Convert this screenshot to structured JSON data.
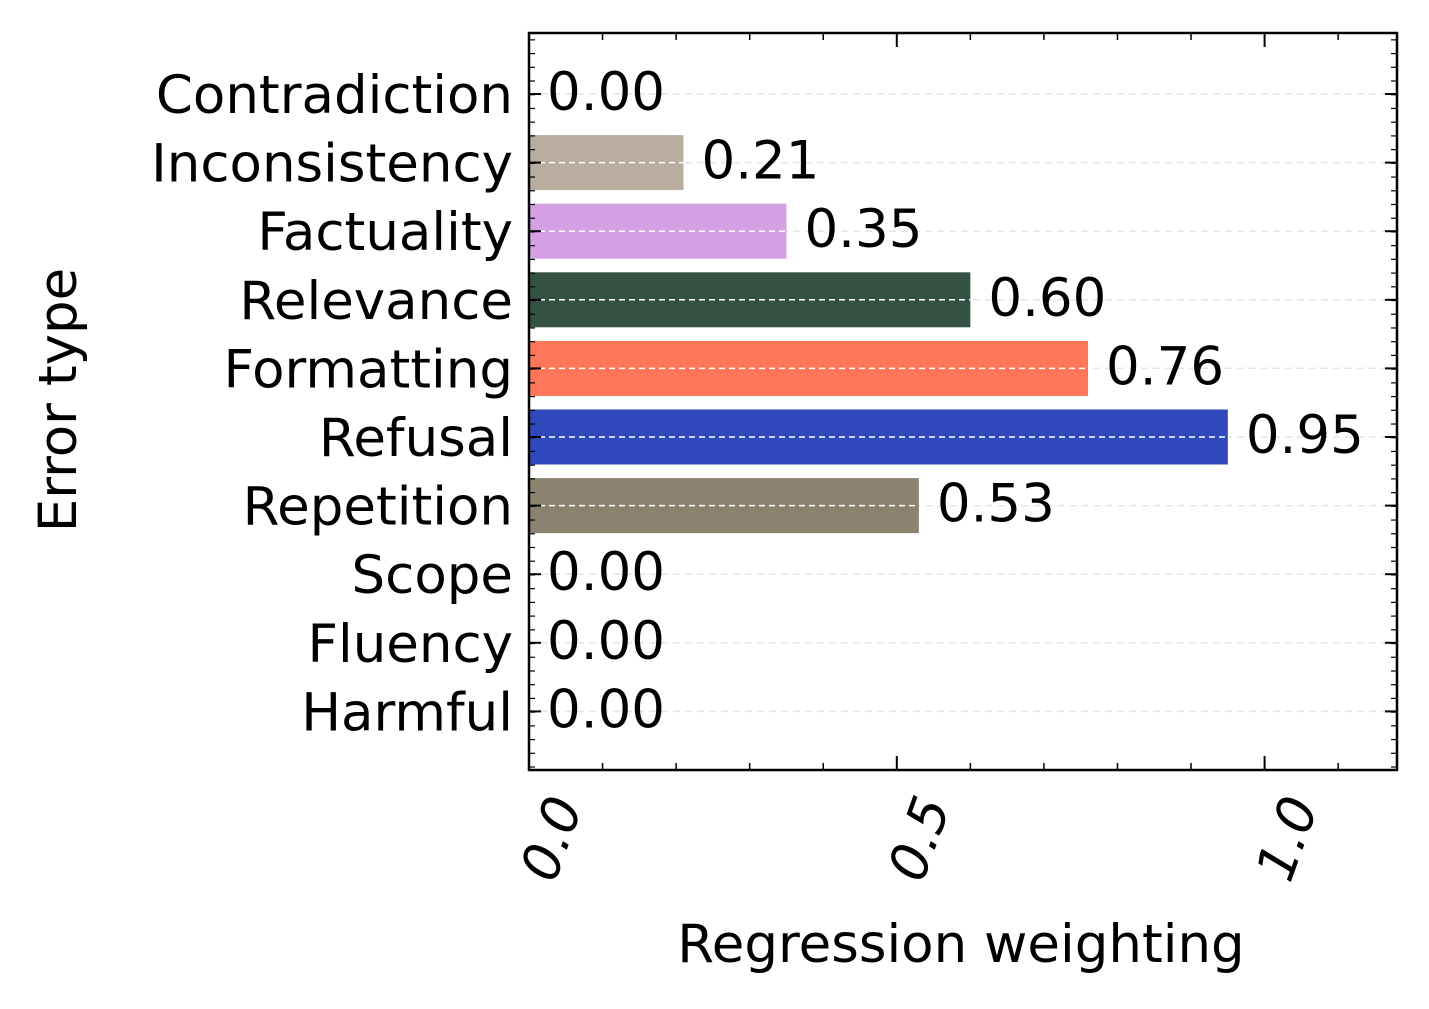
{
  "chart_data": {
    "type": "bar",
    "orientation": "horizontal",
    "xlabel": "Regression weighting",
    "ylabel": "Error type",
    "xlim": [
      0,
      1.18
    ],
    "x_ticks": [
      {
        "value": 0.0,
        "label": "0.0"
      },
      {
        "value": 0.5,
        "label": "0.5"
      },
      {
        "value": 1.0,
        "label": "1.0"
      }
    ],
    "grid": true,
    "categories": [
      "Contradiction",
      "Inconsistency",
      "Factuality",
      "Relevance",
      "Formatting",
      "Refusal",
      "Repetition",
      "Scope",
      "Fluency",
      "Harmful"
    ],
    "values": [
      0.0,
      0.21,
      0.35,
      0.6,
      0.76,
      0.95,
      0.53,
      0.0,
      0.0,
      0.0
    ],
    "value_labels": [
      "0.00",
      "0.21",
      "0.35",
      "0.60",
      "0.76",
      "0.95",
      "0.53",
      "0.00",
      "0.00",
      "0.00"
    ],
    "colors": [
      "#b8ad9e",
      "#b8ad9e",
      "#d5a0e3",
      "#345244",
      "#ff7658",
      "#2f48bc",
      "#8c8270",
      "#8c8270",
      "#8c8270",
      "#8c8270"
    ]
  }
}
